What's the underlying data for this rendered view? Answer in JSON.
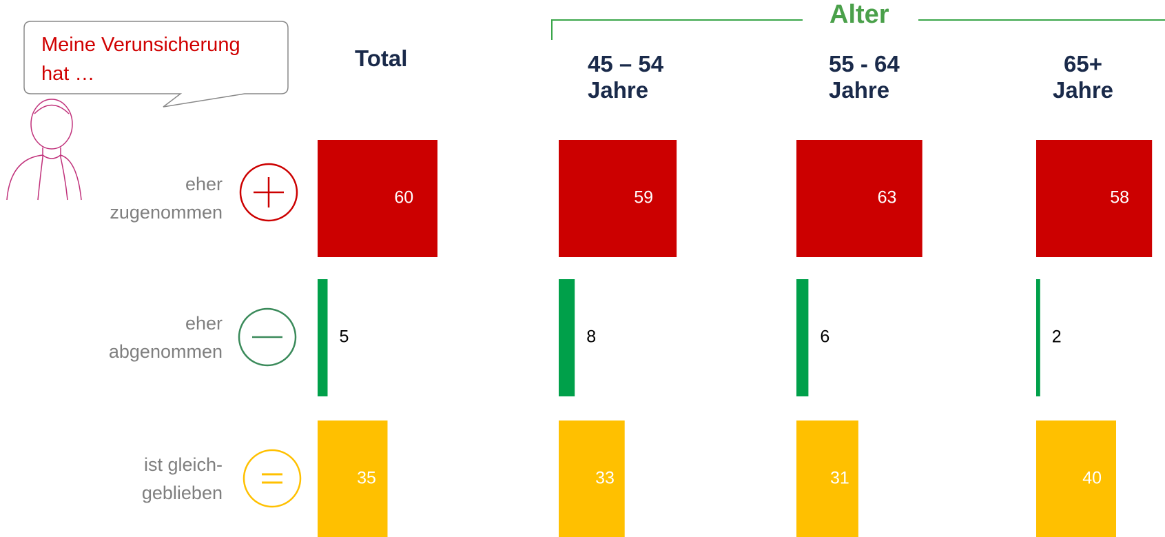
{
  "chart_data": {
    "type": "tile-bar",
    "bubble": "Meine Verunsicherung\nhat …",
    "group_title": "Alter",
    "categories": [
      "eher\nzugenommen",
      "eher\nabgenommen",
      "ist gleich-\ngeblieben"
    ],
    "category_colors": [
      "#cc0000",
      "#00a04a",
      "#ffc000"
    ],
    "series": [
      {
        "name": "Total",
        "values": [
          60,
          5,
          35
        ]
      },
      {
        "name": "45 – 54\nJahre",
        "values": [
          59,
          8,
          33
        ]
      },
      {
        "name": "55 - 64\nJahre",
        "values": [
          63,
          6,
          31
        ]
      },
      {
        "name": "65+\nJahre",
        "values": [
          58,
          2,
          40
        ]
      }
    ]
  }
}
